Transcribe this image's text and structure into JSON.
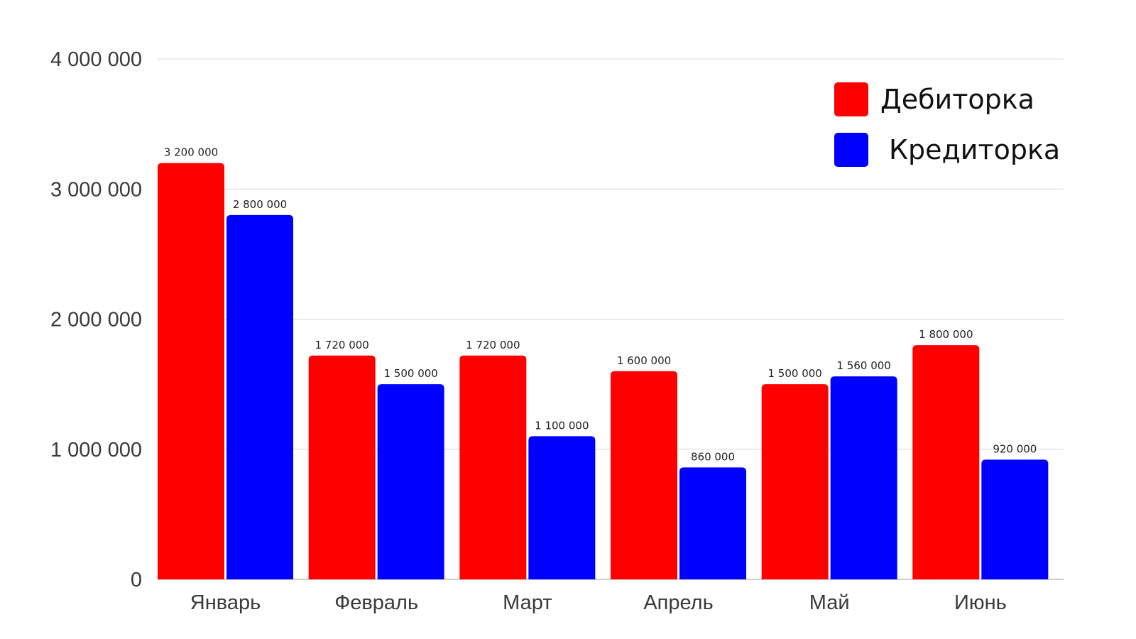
{
  "chart_data": {
    "type": "bar",
    "categories": [
      "Январь",
      "Февраль",
      "Март",
      "Апрель",
      "Май",
      "Июнь"
    ],
    "series": [
      {
        "name": "Дебиторка",
        "color": "#ff0000",
        "values": [
          3200000,
          1720000,
          1720000,
          1600000,
          1500000,
          1800000
        ],
        "labels": [
          "3 200 000",
          "1 720 000",
          "1 720 000",
          "1 600 000",
          "1 500 000",
          "1 800 000"
        ]
      },
      {
        "name": "Кредиторка",
        "color": "#0000ff",
        "values": [
          2800000,
          1500000,
          1100000,
          860000,
          1560000,
          920000
        ],
        "labels": [
          "2 800 000",
          "1 500 000",
          "1 100 000",
          "860 000",
          "1 560 000",
          "920 000"
        ]
      }
    ],
    "ylim": [
      0,
      4000000
    ],
    "yticks": [
      0,
      1000000,
      2000000,
      3000000,
      4000000
    ],
    "ytick_labels": [
      "0",
      "1 000 000",
      "2 000 000",
      "3 000 000",
      "4 000 000"
    ],
    "grid": true,
    "legend_position": "top-right"
  }
}
